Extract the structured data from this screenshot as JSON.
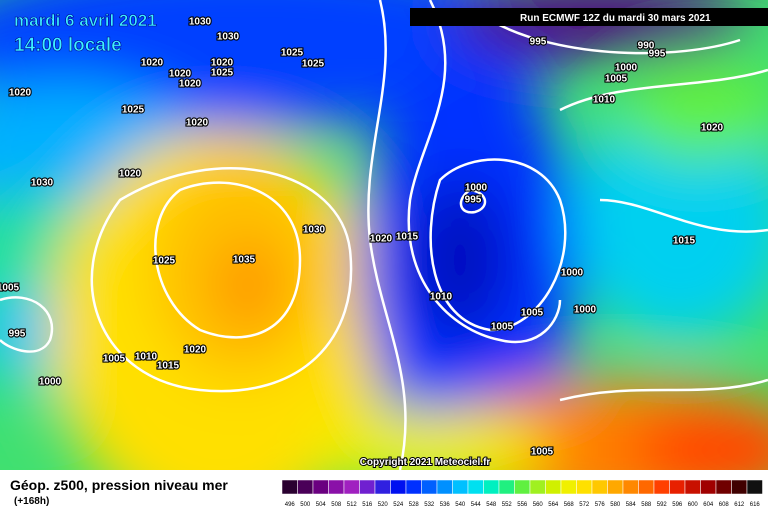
{
  "header": {
    "date": "mardi 6 avril 2021",
    "time": "14:00 locale",
    "run": "Run ECMWF 12Z du mardi 30 mars 2021"
  },
  "isobar_labels": [
    "1030",
    "1030",
    "1025",
    "1025",
    "1020",
    "1020",
    "1020",
    "1025",
    "1020",
    "1020",
    "1025",
    "1020",
    "1020",
    "1030",
    "995",
    "990",
    "995",
    "1000",
    "1005",
    "1010",
    "1020",
    "1000",
    "995",
    "1030",
    "1020",
    "1015",
    "1015",
    "1025",
    "1035",
    "1000",
    "1005",
    "1010",
    "1000",
    "1005",
    "1005",
    "995",
    "1020",
    "1005",
    "1010",
    "1015",
    "1000",
    "1005"
  ],
  "copyright": "Copyright 2021 Meteociel.fr",
  "footer": {
    "title": "Géop. z500, pression niveau mer",
    "lead": "(+168h)"
  },
  "scale": {
    "values": [
      496,
      500,
      504,
      508,
      512,
      516,
      520,
      524,
      528,
      532,
      536,
      540,
      544,
      548,
      552,
      556,
      560,
      564,
      568,
      572,
      576,
      580,
      584,
      588,
      592,
      596,
      600,
      604,
      608,
      612,
      616
    ],
    "colors": [
      "#2a0030",
      "#4a0058",
      "#6a0080",
      "#8a10a8",
      "#a020c0",
      "#7020d0",
      "#3020e0",
      "#0010f0",
      "#0030ff",
      "#0060ff",
      "#0090ff",
      "#00c0ff",
      "#00e0f0",
      "#00f0c0",
      "#20f080",
      "#60f040",
      "#a0f020",
      "#d0f000",
      "#f0f000",
      "#ffe000",
      "#ffc800",
      "#ffa800",
      "#ff8800",
      "#ff6800",
      "#ff4000",
      "#e82000",
      "#c81000",
      "#a00000",
      "#700000",
      "#400000",
      "#101010"
    ]
  }
}
